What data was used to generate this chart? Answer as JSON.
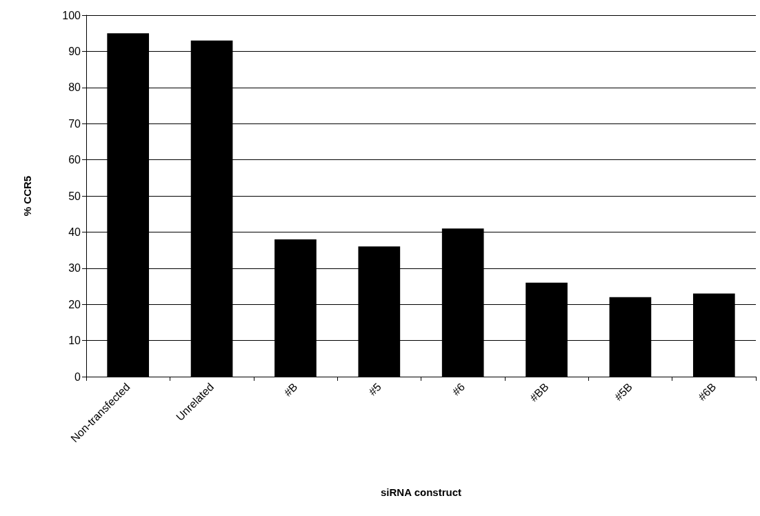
{
  "chart_data": {
    "type": "bar",
    "xlabel": "siRNA construct",
    "ylabel": "% CCR5",
    "categories": [
      "Non-transfected",
      "Unrelated",
      "#B",
      "#5",
      "#6",
      "#BB",
      "#5B",
      "#6B"
    ],
    "values": [
      95,
      93,
      38,
      36,
      41,
      26,
      22,
      23
    ],
    "color": "#000000",
    "ylim": [
      0,
      100
    ],
    "yticks": [
      0,
      10,
      20,
      30,
      40,
      50,
      60,
      70,
      80,
      90,
      100
    ],
    "grid": "y"
  }
}
